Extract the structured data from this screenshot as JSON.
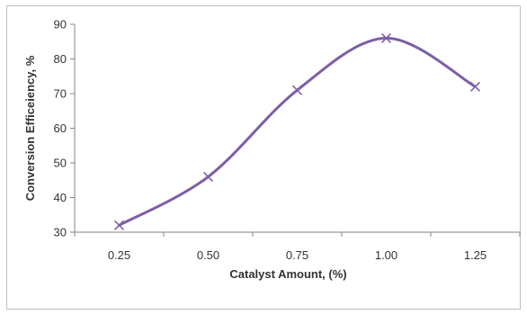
{
  "chart_data": {
    "type": "line",
    "smooth": true,
    "marker": "x",
    "color": "#7d5fa6",
    "title": "",
    "xlabel": "Catalyst Amount, (%)",
    "ylabel": "Conversion Efficeiency, %",
    "x": [
      0.25,
      0.5,
      0.75,
      1.0,
      1.25
    ],
    "x_tick_labels": [
      "0.25",
      "0.50",
      "0.75",
      "1.00",
      "1.25"
    ],
    "ylim": [
      30,
      90
    ],
    "y_ticks": [
      30,
      40,
      50,
      60,
      70,
      80,
      90
    ],
    "grid": false,
    "legend": "none",
    "series": [
      {
        "values": [
          32,
          46,
          71,
          86,
          72
        ]
      }
    ]
  }
}
